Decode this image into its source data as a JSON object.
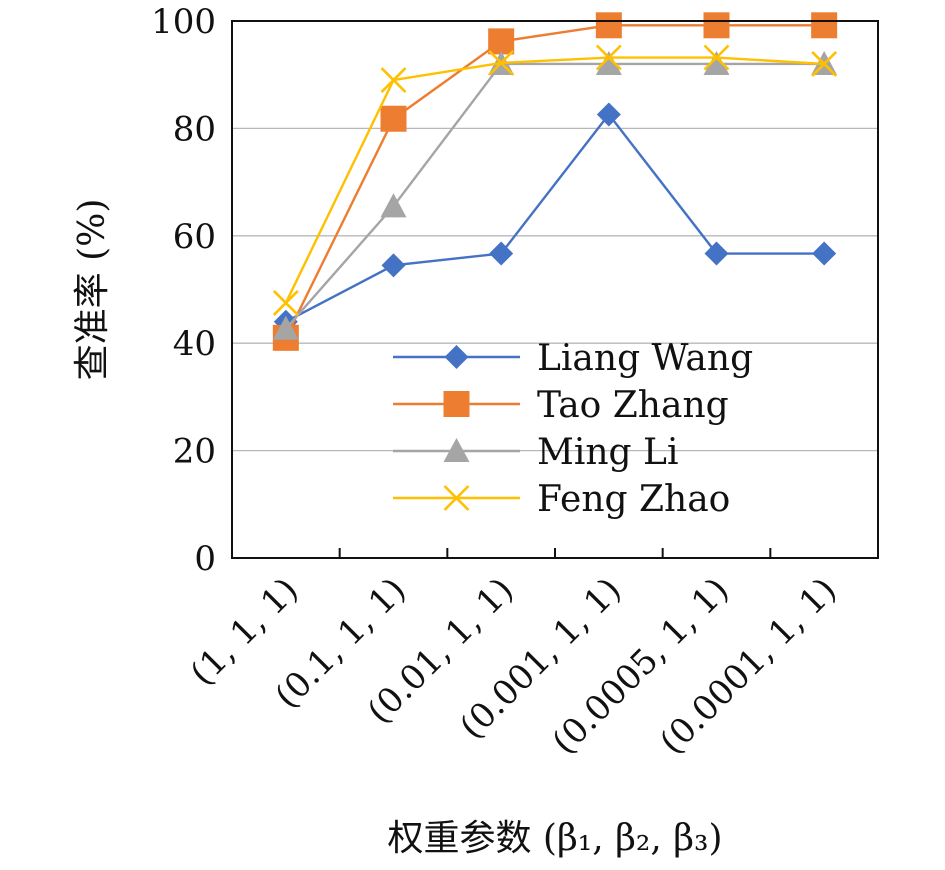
{
  "chart_data": {
    "type": "line",
    "title": "",
    "xlabel": "权重参数 (β₁, β₂, β₃)",
    "ylabel": "查准率 (%)",
    "ylim": [
      0,
      100
    ],
    "yticks": [
      "0",
      "20",
      "40",
      "60",
      "80",
      "100"
    ],
    "categories": [
      "(1, 1, 1)",
      "(0.1, 1, 1)",
      "(0.01, 1, 1)",
      "(0.001, 1, 1)",
      "(0.0005, 1, 1)",
      "(0.0001, 1, 1)"
    ],
    "grid": true,
    "legend_position": "lower-right",
    "series": [
      {
        "name": "Liang Wang",
        "color": "#4472C4",
        "marker": "diamond",
        "values": [
          44,
          54.5,
          56.7,
          82.6,
          56.7,
          56.7
        ]
      },
      {
        "name": "Tao Zhang",
        "color": "#ED7D31",
        "marker": "square",
        "values": [
          41,
          81.8,
          96.2,
          99.2,
          99.2,
          99.2
        ]
      },
      {
        "name": "Ming Li",
        "color": "#A5A5A5",
        "marker": "triangle",
        "values": [
          42.7,
          65.5,
          92,
          92,
          92,
          92
        ]
      },
      {
        "name": "Feng Zhao",
        "color": "#FFC000",
        "marker": "x",
        "values": [
          47.5,
          89,
          92.2,
          93.2,
          93.2,
          92
        ]
      }
    ]
  }
}
